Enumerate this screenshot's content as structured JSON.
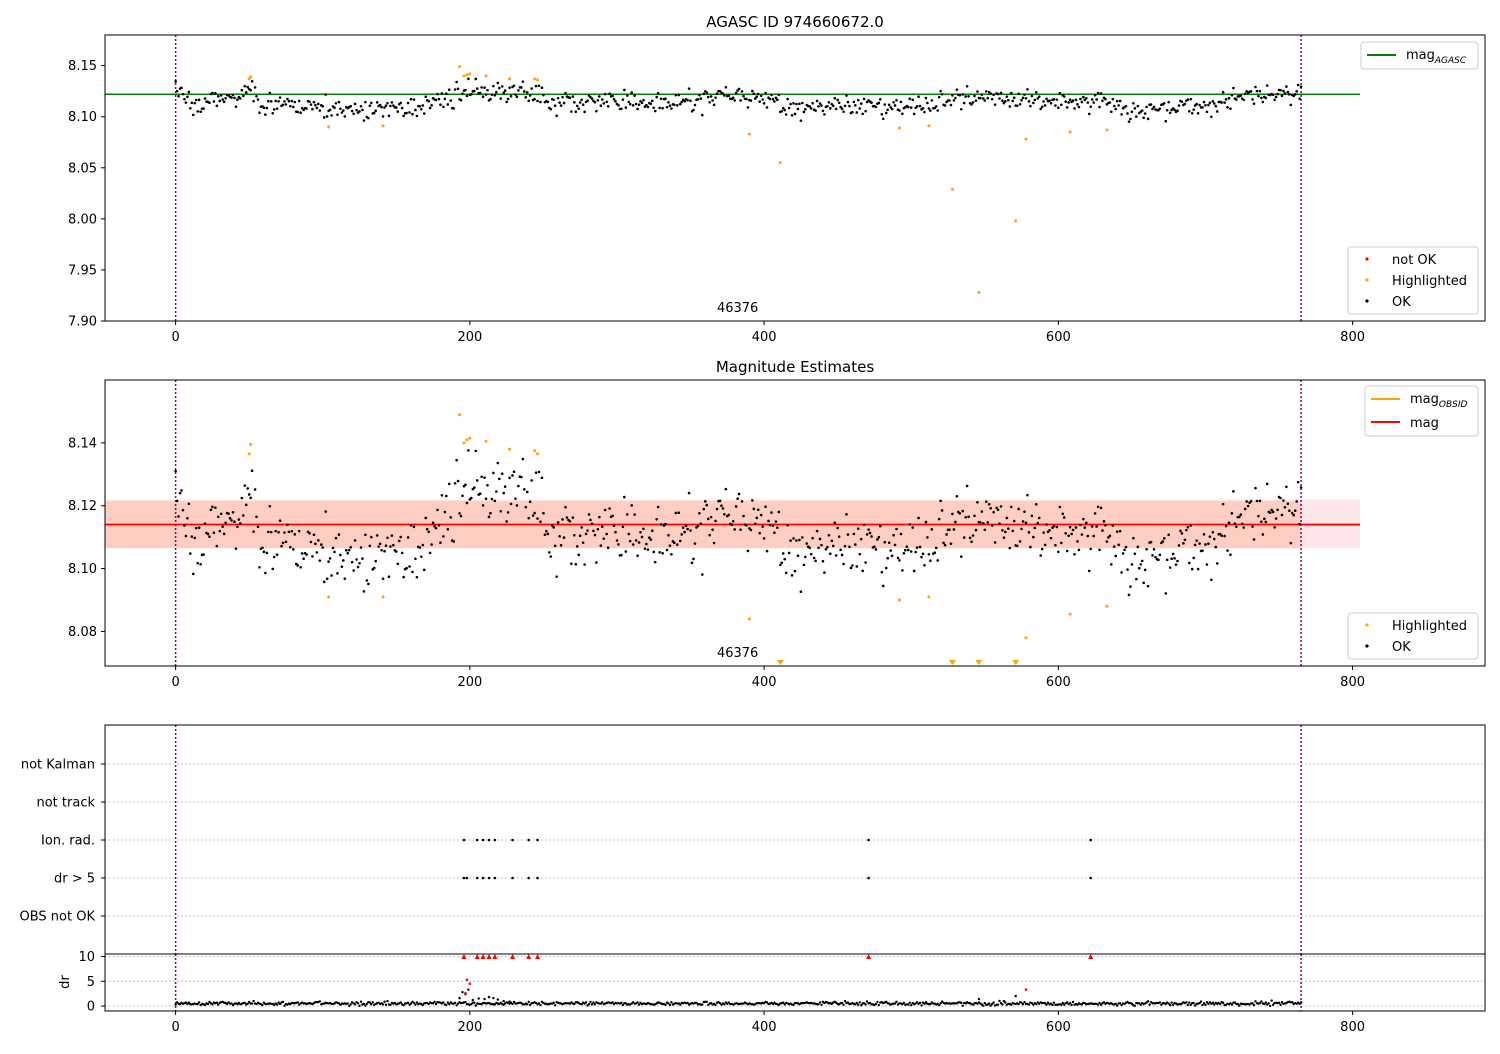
{
  "chart_data": [
    {
      "type": "scatter",
      "title": "AGASC ID 974660672.0",
      "xlim": [
        -48,
        890
      ],
      "ylim": [
        7.9,
        8.18
      ],
      "x_ticks": [
        "0",
        "200",
        "400",
        "600",
        "800"
      ],
      "y_ticks": [
        "7.90",
        "7.95",
        "8.00",
        "8.05",
        "8.10",
        "8.15"
      ],
      "reference_lines": {
        "mag_agasc": 8.122,
        "x_span": [
          -48,
          805
        ]
      },
      "obsid_boundaries": [
        0,
        765
      ],
      "obsid_label": {
        "text": "46376",
        "x": 382
      },
      "legend_lines": [
        {
          "main": "mag",
          "sub": "AGASC",
          "color": "#008000"
        }
      ],
      "legend_points": [
        {
          "label": "not OK",
          "color": "#ff0000"
        },
        {
          "label": "Highlighted",
          "color": "#ffa500"
        },
        {
          "label": "OK",
          "color": "#000000"
        }
      ],
      "highlighted": {
        "x": [
          50,
          51,
          104,
          141,
          193,
          196,
          198,
          200,
          211,
          227,
          244,
          246,
          390,
          411,
          492,
          512,
          528,
          546,
          571,
          578,
          608,
          633
        ],
        "y": [
          8.137,
          8.139,
          8.09,
          8.091,
          8.149,
          8.14,
          8.141,
          8.142,
          8.14,
          8.137,
          8.137,
          8.136,
          8.083,
          8.055,
          8.089,
          8.091,
          8.029,
          7.928,
          7.998,
          8.078,
          8.085,
          8.087
        ]
      }
    },
    {
      "type": "scatter",
      "title": "Magnitude Estimates",
      "xlim": [
        -48,
        890
      ],
      "ylim": [
        8.069,
        8.16
      ],
      "x_ticks": [
        "0",
        "200",
        "400",
        "600",
        "800"
      ],
      "y_ticks": [
        "8.08",
        "8.10",
        "8.12",
        "8.14"
      ],
      "mag_line": 8.114,
      "band_outer": [
        8.1065,
        8.122
      ],
      "band_inner": [
        8.1065,
        8.1215
      ],
      "band_x_span": [
        -48,
        805
      ],
      "obsid_boundaries": [
        0,
        765
      ],
      "obsid_label": {
        "text": "46376",
        "x": 382
      },
      "legend_lines": [
        {
          "main": "mag",
          "sub": "OBSID",
          "color": "#ffa500"
        },
        {
          "main": "mag",
          "sub": "",
          "color": "#ff0000"
        }
      ],
      "legend_points": [
        {
          "label": "Highlighted",
          "color": "#ffa500"
        },
        {
          "label": "OK",
          "color": "#000000"
        }
      ],
      "highlighted": {
        "x": [
          50,
          51,
          104,
          141,
          193,
          196,
          198,
          200,
          211,
          227,
          244,
          246,
          390,
          492,
          512,
          578,
          608,
          633
        ],
        "y": [
          8.1365,
          8.1395,
          8.091,
          8.091,
          8.149,
          8.14,
          8.141,
          8.1415,
          8.1405,
          8.138,
          8.1375,
          8.1365,
          8.084,
          8.09,
          8.091,
          8.078,
          8.0855,
          8.088
        ]
      },
      "clipped_markers_x": [
        411,
        528,
        546,
        571
      ]
    },
    {
      "type": "scatter",
      "xlim": [
        -48,
        890
      ],
      "categories": [
        "not Kalman",
        "not track",
        "Ion. rad.",
        "dr > 5",
        "OBS not OK"
      ],
      "obsid_boundaries": [
        0,
        765
      ],
      "flags": {
        "ion_rad_x": [
          196,
          205,
          209,
          213,
          217,
          229,
          240,
          246,
          471,
          622
        ],
        "dr5_x": [
          196,
          198,
          205,
          209,
          213,
          217,
          229,
          240,
          246,
          471,
          622
        ]
      }
    },
    {
      "type": "scatter",
      "xlim": [
        -48,
        890
      ],
      "ylim": [
        -1,
        10.5
      ],
      "ylabel": "dr",
      "y_ticks": [
        "0",
        "5",
        "10"
      ],
      "x_ticks": [
        "0",
        "200",
        "400",
        "600",
        "800"
      ],
      "obsid_boundaries": [
        0,
        765
      ],
      "capped_x": [
        196,
        205,
        209,
        213,
        217,
        229,
        240,
        246,
        471,
        622
      ],
      "red_points": {
        "x": [
          197,
          198,
          200,
          578
        ],
        "y": [
          2.6,
          5.3,
          4.5,
          3.3
        ]
      },
      "spikes": {
        "x": [
          193,
          195,
          197,
          199,
          202,
          206,
          210,
          213,
          216,
          219,
          223,
          227,
          546,
          571
        ],
        "y": [
          1.6,
          2.8,
          2.4,
          3.3,
          1.2,
          1.5,
          1.4,
          1.8,
          1.6,
          1.3,
          1.0,
          0.9,
          1.4,
          2.0
        ]
      }
    }
  ]
}
